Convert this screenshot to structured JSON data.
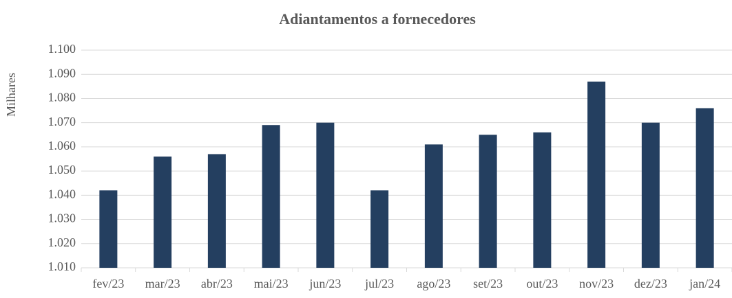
{
  "chart_data": {
    "type": "bar",
    "title": "Adiantamentos a fornecedores",
    "y_label": "Milhares",
    "categories": [
      "fev/23",
      "mar/23",
      "abr/23",
      "mai/23",
      "jun/23",
      "jul/23",
      "ago/23",
      "set/23",
      "out/23",
      "nov/23",
      "dez/23",
      "jan/24"
    ],
    "values": [
      1042,
      1056,
      1057,
      1069,
      1070,
      1042,
      1061,
      1065,
      1066,
      1087,
      1070,
      1076
    ],
    "color": "#243f60",
    "ylim": [
      1010,
      1100
    ],
    "yticks": [
      {
        "value": 1010,
        "label": "1.010"
      },
      {
        "value": 1020,
        "label": "1.020"
      },
      {
        "value": 1030,
        "label": "1.030"
      },
      {
        "value": 1040,
        "label": "1.040"
      },
      {
        "value": 1050,
        "label": "1.050"
      },
      {
        "value": 1060,
        "label": "1.060"
      },
      {
        "value": 1070,
        "label": "1.070"
      },
      {
        "value": 1080,
        "label": "1.080"
      },
      {
        "value": 1090,
        "label": "1.090"
      },
      {
        "value": 1100,
        "label": "1.100"
      }
    ],
    "grid": true
  }
}
